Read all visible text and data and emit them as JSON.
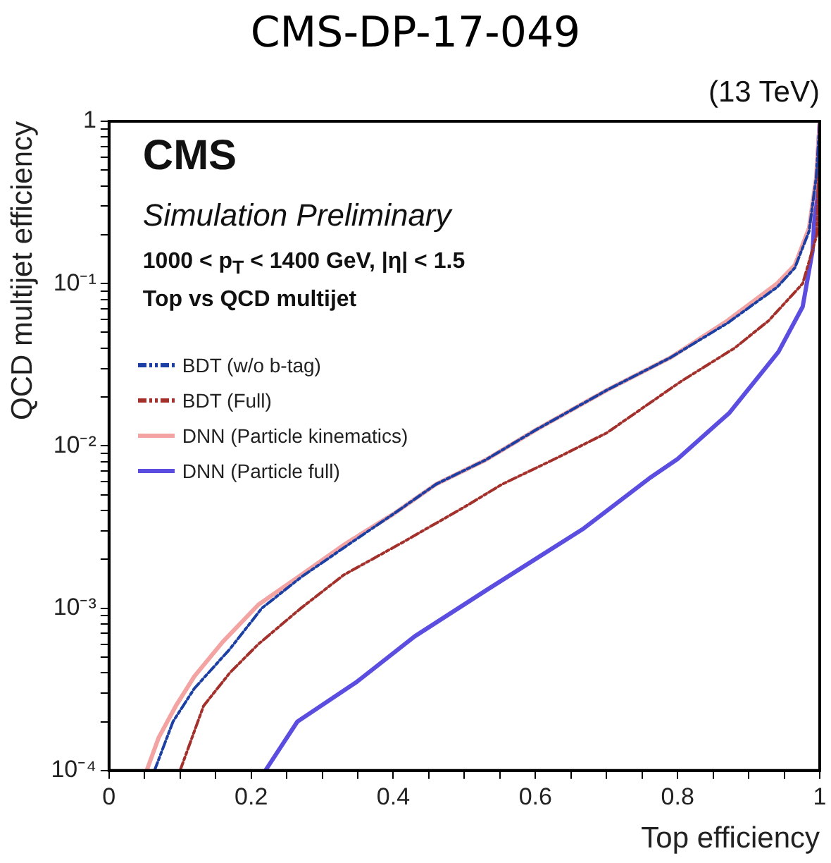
{
  "chart_data": {
    "type": "line",
    "title": "CMS-DP-17-049",
    "xlabel": "Top efficiency",
    "ylabel": "QCD multijet efficiency",
    "annotations": [
      "(13 TeV)",
      "CMS",
      "Simulation Preliminary",
      "1000 < p$_{T}$ < 1400 GeV, |η| < 1.5",
      "Top vs QCD multijet"
    ],
    "log": "y",
    "grid": false,
    "legend": "top left",
    "marker": "none",
    "xlim": [
      0,
      1
    ],
    "ylim": [
      0.0001,
      1
    ],
    "xticks": [
      0,
      {
        "value": 0.05,
        "label": null
      },
      {
        "value": 0.1,
        "label": null
      },
      {
        "value": 0.15,
        "label": null
      },
      0.2,
      {
        "value": 0.25,
        "label": null
      },
      {
        "value": 0.3,
        "label": null
      },
      {
        "value": 0.35,
        "label": null
      },
      0.4,
      {
        "value": 0.45,
        "label": null
      },
      {
        "value": 0.5,
        "label": null
      },
      {
        "value": 0.55,
        "label": null
      },
      0.6,
      {
        "value": 0.65,
        "label": null
      },
      {
        "value": 0.7,
        "label": null
      },
      {
        "value": 0.75,
        "label": null
      },
      0.8,
      {
        "value": 0.85,
        "label": null
      },
      {
        "value": 0.9,
        "label": null
      },
      {
        "value": 0.95,
        "label": null
      },
      1
    ],
    "yticks": [
      {
        "value": 0.0001,
        "label": "10⁻⁴"
      },
      {
        "value": 0.0002,
        "label": null
      },
      {
        "value": 0.0003,
        "label": null
      },
      {
        "value": 0.0004,
        "label": null
      },
      {
        "value": 0.0005,
        "label": null
      },
      {
        "value": 0.0006,
        "label": null
      },
      {
        "value": 0.0007,
        "label": null
      },
      {
        "value": 0.0008,
        "label": null
      },
      {
        "value": 0.0009,
        "label": null
      },
      {
        "value": 0.001,
        "label": "10⁻³"
      },
      {
        "value": 0.002,
        "label": null
      },
      {
        "value": 0.003,
        "label": null
      },
      {
        "value": 0.004,
        "label": null
      },
      {
        "value": 0.005,
        "label": null
      },
      {
        "value": 0.006,
        "label": null
      },
      {
        "value": 0.007,
        "label": null
      },
      {
        "value": 0.008,
        "label": null
      },
      {
        "value": 0.009,
        "label": null
      },
      {
        "value": 0.01,
        "label": "10⁻²"
      },
      {
        "value": 0.02,
        "label": null
      },
      {
        "value": 0.03,
        "label": null
      },
      {
        "value": 0.04,
        "label": null
      },
      {
        "value": 0.05,
        "label": null
      },
      {
        "value": 0.06,
        "label": null
      },
      {
        "value": 0.07,
        "label": null
      },
      {
        "value": 0.08,
        "label": null
      },
      {
        "value": 0.09,
        "label": null
      },
      {
        "value": 0.1,
        "label": "10⁻¹"
      },
      {
        "value": 0.2,
        "label": null
      },
      {
        "value": 0.3,
        "label": null
      },
      {
        "value": 0.4,
        "label": null
      },
      {
        "value": 0.5,
        "label": null
      },
      {
        "value": 0.6,
        "label": null
      },
      {
        "value": 0.7,
        "label": null
      },
      {
        "value": 0.8,
        "label": null
      },
      {
        "value": 0.9,
        "label": null
      },
      1
    ],
    "series": [
      {
        "name": "BDT (w/o b-tag)",
        "color": "#1c3fa3",
        "line_style": "dashed",
        "x": [
          0.064,
          0.09,
          0.12,
          0.17,
          0.215,
          0.27,
          0.333,
          0.4,
          0.46,
          0.53,
          0.6,
          0.7,
          0.79,
          0.87,
          0.94,
          0.965,
          0.985,
          0.995,
          1
        ],
        "values": [
          0.0001,
          0.0002,
          0.00032,
          0.00056,
          0.001,
          0.00155,
          0.0024,
          0.0038,
          0.0058,
          0.0082,
          0.0125,
          0.022,
          0.035,
          0.057,
          0.095,
          0.125,
          0.21,
          0.45,
          1
        ]
      },
      {
        "name": "BDT (Full)",
        "color": "#a3302b",
        "line_style": "dashed",
        "x": [
          0.1,
          0.133,
          0.17,
          0.21,
          0.27,
          0.33,
          0.41,
          0.5,
          0.553,
          0.627,
          0.7,
          0.805,
          0.88,
          0.928,
          0.976,
          0.996,
          1
        ],
        "values": [
          0.0001,
          0.00025,
          0.0004,
          0.0006,
          0.001,
          0.0016,
          0.0025,
          0.0042,
          0.0058,
          0.0083,
          0.012,
          0.025,
          0.04,
          0.059,
          0.1,
          0.2,
          1
        ]
      },
      {
        "name": "DNN (Particle kinematics)",
        "color": "#f4a3a3",
        "line_style": "solid",
        "x": [
          0.053,
          0.07,
          0.094,
          0.12,
          0.16,
          0.21,
          0.27,
          0.333,
          0.4,
          0.46,
          0.53,
          0.6,
          0.7,
          0.79,
          0.87,
          0.94,
          0.965,
          0.985,
          0.995,
          1
        ],
        "values": [
          0.0001,
          0.00016,
          0.00025,
          0.00038,
          0.00062,
          0.00105,
          0.0016,
          0.0025,
          0.0038,
          0.0058,
          0.0082,
          0.0125,
          0.022,
          0.035,
          0.059,
          0.1,
          0.13,
          0.22,
          0.45,
          1
        ]
      },
      {
        "name": "DNN (Particle full)",
        "color": "#5a4de0",
        "line_style": "solid",
        "x": [
          0.22,
          0.265,
          0.348,
          0.43,
          0.532,
          0.668,
          0.76,
          0.8,
          0.873,
          0.942,
          0.976,
          0.99,
          0.995,
          1
        ],
        "values": [
          0.0001,
          0.0002,
          0.00035,
          0.00067,
          0.0013,
          0.0031,
          0.0063,
          0.0083,
          0.016,
          0.038,
          0.072,
          0.16,
          0.4,
          1
        ]
      }
    ]
  }
}
